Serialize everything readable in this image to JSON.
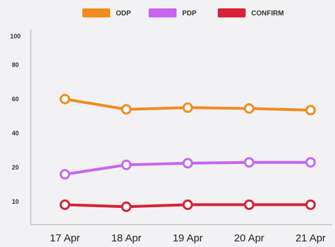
{
  "chart_data": {
    "type": "line",
    "categories": [
      "17 Apr",
      "18 Apr",
      "19 Apr",
      "20 Apr",
      "21 Apr"
    ],
    "yticks": [
      "100",
      "80",
      "60",
      "40",
      "20",
      "10"
    ],
    "ylim": [
      0,
      100
    ],
    "grid": false,
    "legend_position": "top-center",
    "series": [
      {
        "name": "ODP",
        "color": "#f08c1e",
        "values": [
          60,
          54,
          55,
          54.5,
          53.5
        ]
      },
      {
        "name": "PDP",
        "color": "#c665f0",
        "values": [
          18,
          21.5,
          22.5,
          23,
          23
        ]
      },
      {
        "name": "CONFIRM",
        "color": "#d62237",
        "values": [
          8.5,
          7.5,
          8.5,
          8.5,
          8.5
        ]
      }
    ]
  }
}
